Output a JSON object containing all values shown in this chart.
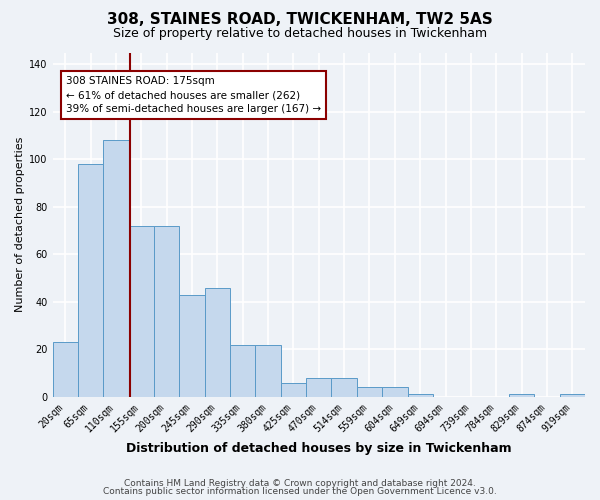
{
  "title": "308, STAINES ROAD, TWICKENHAM, TW2 5AS",
  "subtitle": "Size of property relative to detached houses in Twickenham",
  "xlabel": "Distribution of detached houses by size in Twickenham",
  "ylabel": "Number of detached properties",
  "categories": [
    "20sqm",
    "65sqm",
    "110sqm",
    "155sqm",
    "200sqm",
    "245sqm",
    "290sqm",
    "335sqm",
    "380sqm",
    "425sqm",
    "470sqm",
    "514sqm",
    "559sqm",
    "604sqm",
    "649sqm",
    "694sqm",
    "739sqm",
    "784sqm",
    "829sqm",
    "874sqm",
    "919sqm"
  ],
  "values": [
    23,
    98,
    108,
    72,
    72,
    43,
    46,
    22,
    22,
    6,
    8,
    8,
    4,
    4,
    1,
    0,
    0,
    0,
    1,
    0,
    1
  ],
  "bar_color": "#c5d8ed",
  "bar_edge_color": "#5a9ac8",
  "vline_x": 2.57,
  "vline_color": "#8b0000",
  "annotation_text": "308 STAINES ROAD: 175sqm\n← 61% of detached houses are smaller (262)\n39% of semi-detached houses are larger (167) →",
  "annotation_box_color": "#8b0000",
  "annotation_box_facecolor": "white",
  "ylim": [
    0,
    145
  ],
  "yticks": [
    0,
    20,
    40,
    60,
    80,
    100,
    120,
    140
  ],
  "footer_line1": "Contains HM Land Registry data © Crown copyright and database right 2024.",
  "footer_line2": "Contains public sector information licensed under the Open Government Licence v3.0.",
  "background_color": "#eef2f7",
  "grid_color": "white",
  "title_fontsize": 11,
  "subtitle_fontsize": 9,
  "xlabel_fontsize": 9,
  "ylabel_fontsize": 8,
  "tick_fontsize": 7,
  "footer_fontsize": 6.5
}
